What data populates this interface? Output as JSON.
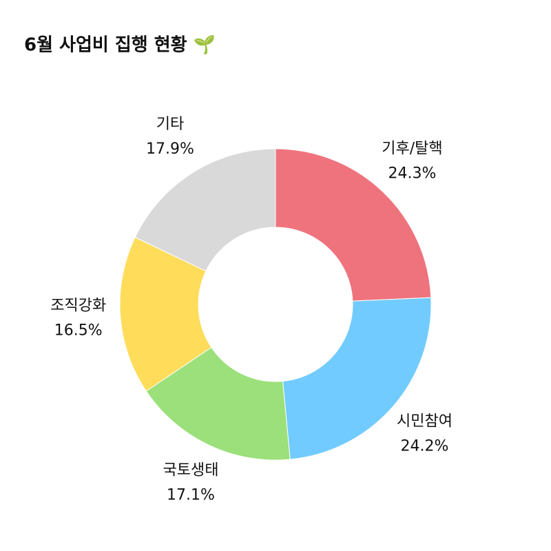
{
  "chart_data": {
    "type": "donut",
    "title": "6월 사업비 집행 현황 🌱",
    "categories": [
      "기후/탈핵",
      "시민참여",
      "국토생태",
      "조직강화",
      "기타"
    ],
    "values": [
      24.3,
      24.2,
      17.1,
      16.5,
      17.9
    ],
    "value_labels": [
      "24.3%",
      "24.2%",
      "17.1%",
      "16.5%",
      "17.9%"
    ],
    "colors": [
      "#ef737d",
      "#72cbff",
      "#9be07a",
      "#ffdc5a",
      "#d9d9d9"
    ]
  }
}
